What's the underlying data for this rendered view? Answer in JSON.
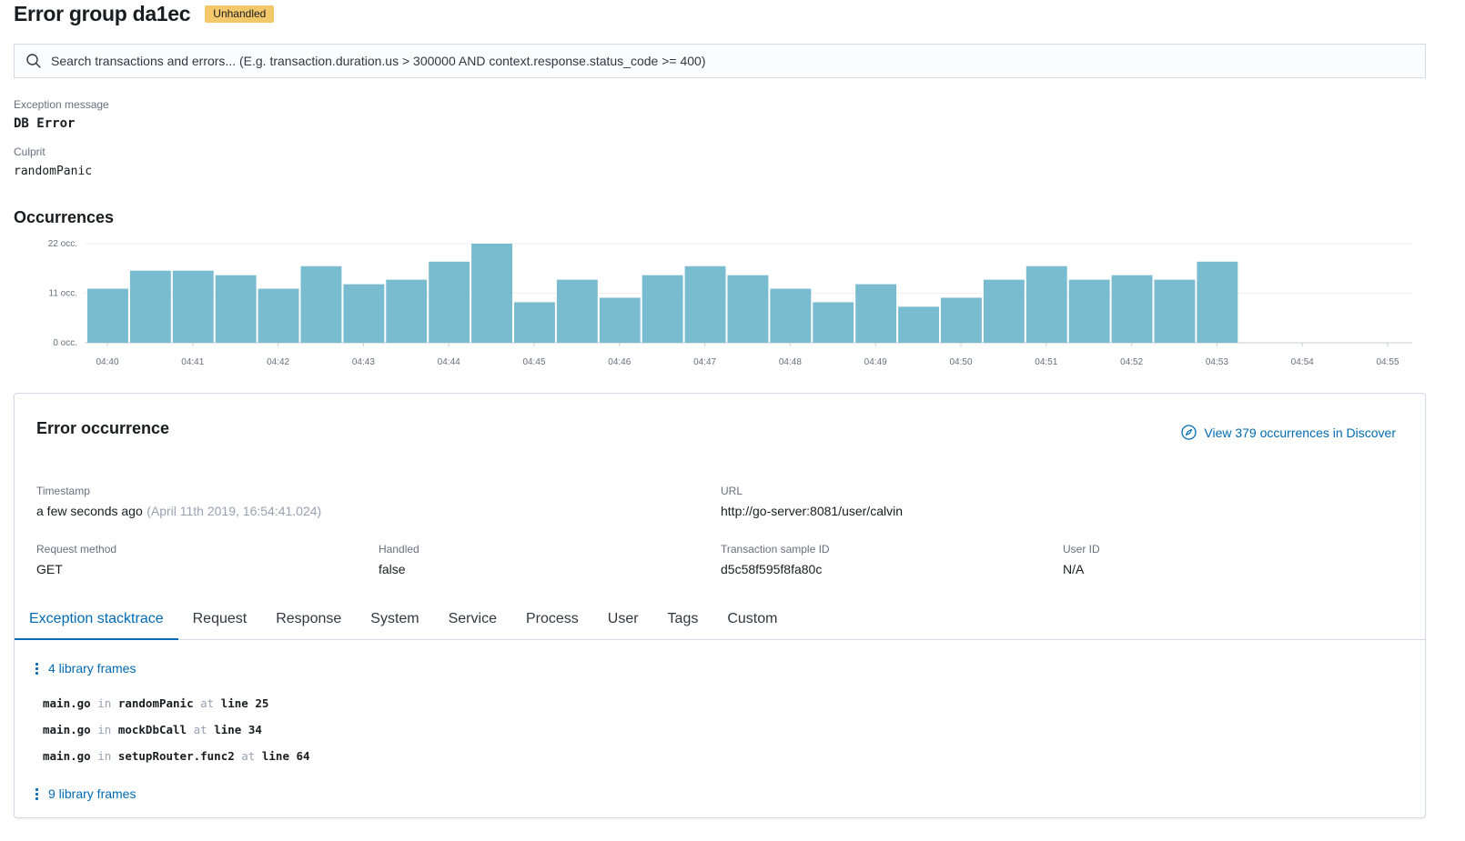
{
  "header": {
    "title": "Error group da1ec",
    "badge": "Unhandled"
  },
  "search": {
    "placeholder": "Search transactions and errors... (E.g. transaction.duration.us > 300000 AND context.response.status_code >= 400)"
  },
  "exception": {
    "message_label": "Exception message",
    "message": "DB Error",
    "culprit_label": "Culprit",
    "culprit": "randomPanic"
  },
  "occurrences": {
    "title": "Occurrences"
  },
  "chart_data": {
    "type": "bar",
    "title": "",
    "xlabel": "",
    "ylabel": "",
    "y_ticks": [
      "0 occ.",
      "11 occ.",
      "22 occ."
    ],
    "ylim": [
      0,
      22
    ],
    "x_ticks": [
      "04:40",
      "04:41",
      "04:42",
      "04:43",
      "04:44",
      "04:45",
      "04:46",
      "04:47",
      "04:48",
      "04:49",
      "04:50",
      "04:51",
      "04:52",
      "04:53",
      "04:54",
      "04:55"
    ],
    "bar_interval_seconds": 30,
    "x_start": "04:39:45",
    "values": [
      12,
      16,
      16,
      15,
      12,
      17,
      13,
      14,
      18,
      22,
      9,
      14,
      10,
      15,
      17,
      15,
      12,
      9,
      13,
      8,
      10,
      14,
      17,
      14,
      15,
      14,
      18
    ],
    "color": "#79bcd0",
    "grid": true
  },
  "error_occurrence": {
    "title": "Error occurrence",
    "discover_link": "View 379 occurrences in Discover",
    "timestamp_label": "Timestamp",
    "timestamp": "a few seconds ago",
    "timestamp_exact": "(April 11th 2019, 16:54:41.024)",
    "url_label": "URL",
    "url": "http://go-server:8081/user/calvin",
    "request_method_label": "Request method",
    "request_method": "GET",
    "handled_label": "Handled",
    "handled": "false",
    "transaction_label": "Transaction sample ID",
    "transaction_id": "d5c58f595f8fa80c",
    "user_label": "User ID",
    "user_id": "N/A"
  },
  "tabs": [
    {
      "label": "Exception stacktrace",
      "active": true
    },
    {
      "label": "Request"
    },
    {
      "label": "Response"
    },
    {
      "label": "System"
    },
    {
      "label": "Service"
    },
    {
      "label": "Process"
    },
    {
      "label": "User"
    },
    {
      "label": "Tags"
    },
    {
      "label": "Custom"
    }
  ],
  "stacktrace": {
    "library_frames_top": "4 library frames",
    "library_frames_bottom": "9 library frames",
    "in_word": "in",
    "at_word": "at",
    "frames": [
      {
        "file": "main.go",
        "function": "randomPanic",
        "line": "line 25"
      },
      {
        "file": "main.go",
        "function": "mockDbCall",
        "line": "line 34"
      },
      {
        "file": "main.go",
        "function": "setupRouter.func2",
        "line": "line 64"
      }
    ]
  },
  "colors": {
    "accent": "#006bb4",
    "badge": "#f2c86a",
    "bar": "#79bcd0"
  }
}
